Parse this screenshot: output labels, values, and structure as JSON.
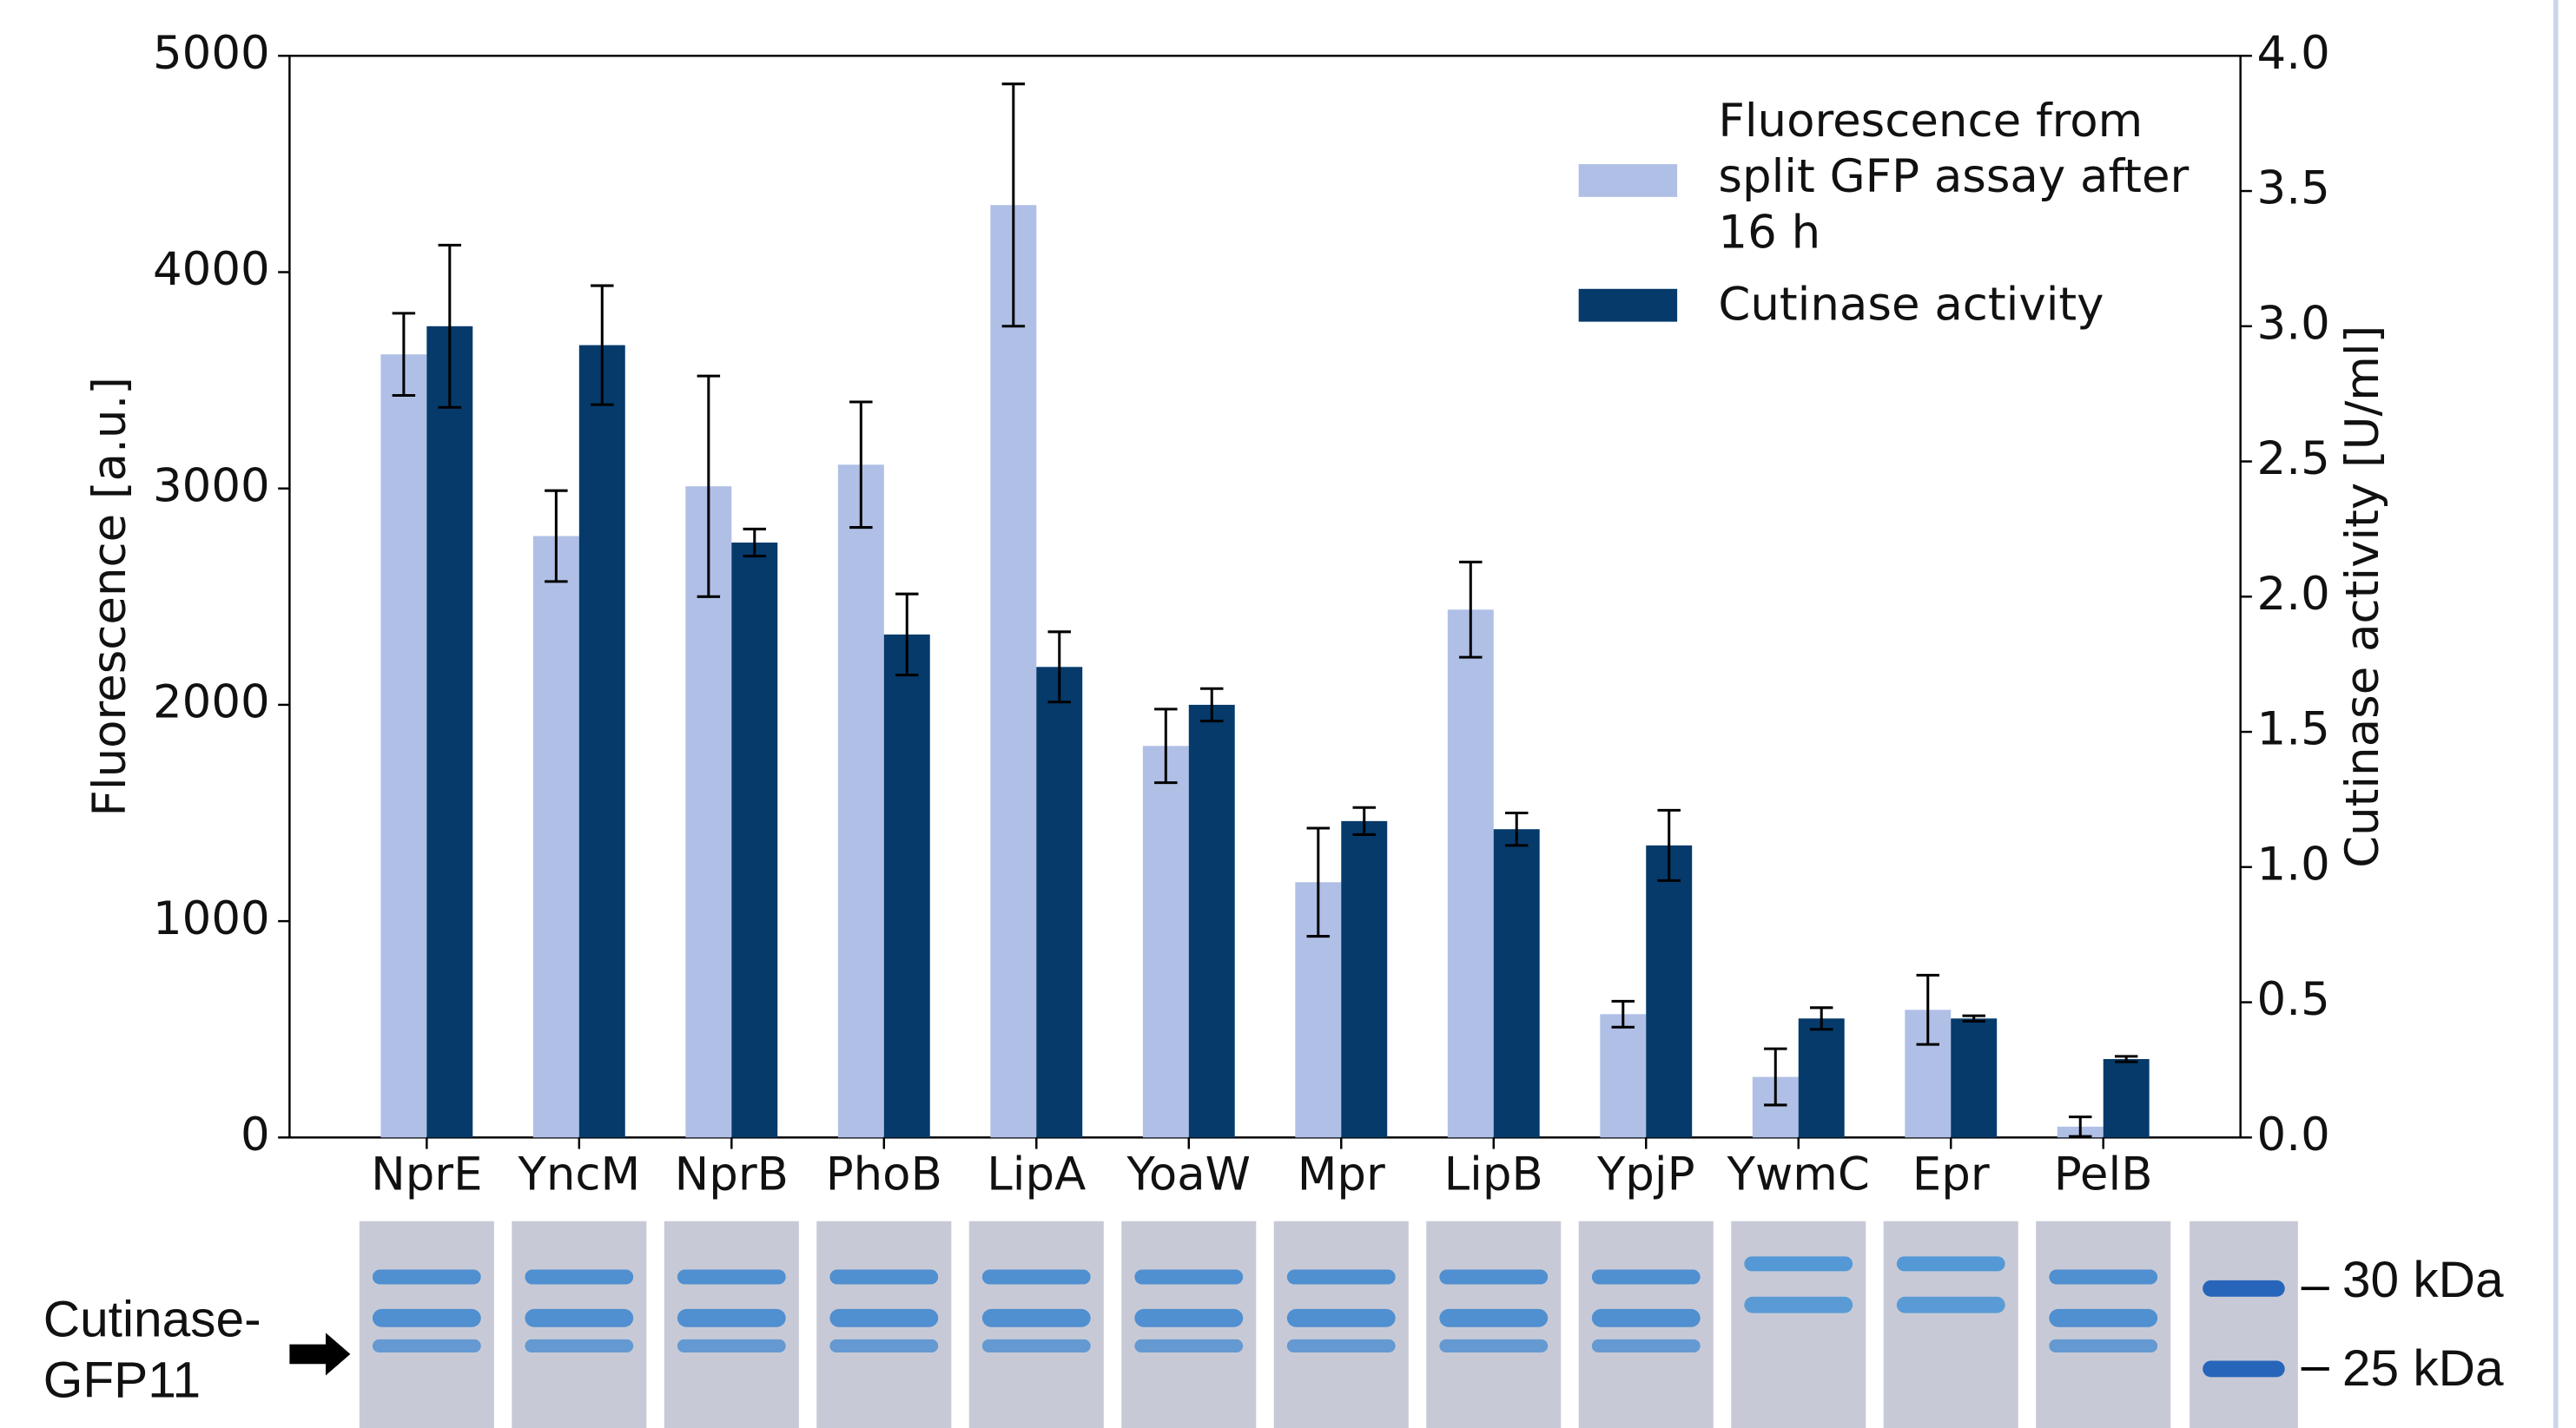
{
  "chart_data": {
    "type": "bar",
    "categories": [
      "NprE",
      "YncM",
      "NprB",
      "PhoB",
      "LipA",
      "YoaW",
      "Mpr",
      "LipB",
      "YpjP",
      "YwmC",
      "Epr",
      "PelB"
    ],
    "series": [
      {
        "name": "Fluorescence from split GFP assay after 16 h",
        "color": "#b0bfe6",
        "values": [
          3620,
          2780,
          3010,
          3110,
          4310,
          1810,
          1180,
          2440,
          570,
          280,
          590,
          50
        ],
        "errors": [
          190,
          210,
          510,
          290,
          560,
          170,
          250,
          220,
          60,
          130,
          160,
          45
        ]
      },
      {
        "name": "Cutinase activity",
        "color": "#053a6b",
        "axis": "y2",
        "values": [
          3.0,
          2.93,
          2.2,
          1.86,
          1.74,
          1.6,
          1.17,
          1.14,
          1.08,
          0.44,
          0.44,
          0.29
        ],
        "errors": [
          0.3,
          0.22,
          0.05,
          0.15,
          0.13,
          0.06,
          0.05,
          0.06,
          0.13,
          0.04,
          0.01,
          0.01
        ]
      }
    ],
    "y_label": "Fluorescence [a.u.]",
    "y2_label": "Cutinase activity [U/ml]",
    "ylim": [
      0,
      5000
    ],
    "yticks": [
      0,
      1000,
      2000,
      3000,
      4000,
      5000
    ],
    "y2lim": [
      0,
      4.0
    ],
    "y2ticks": [
      {
        "value": 0,
        "label": "0.0"
      },
      0.5,
      {
        "value": 1,
        "label": "1.0"
      },
      1.5,
      {
        "value": 2,
        "label": "2.0"
      },
      2.5,
      {
        "value": 3,
        "label": "3.0"
      },
      3.5,
      {
        "value": 4,
        "label": "4.0"
      }
    ],
    "legend": "upper right",
    "gel_label": [
      "Cutinase-",
      "GFP11"
    ],
    "gel_markers": [
      "30 kDa",
      "25 kDa"
    ]
  }
}
